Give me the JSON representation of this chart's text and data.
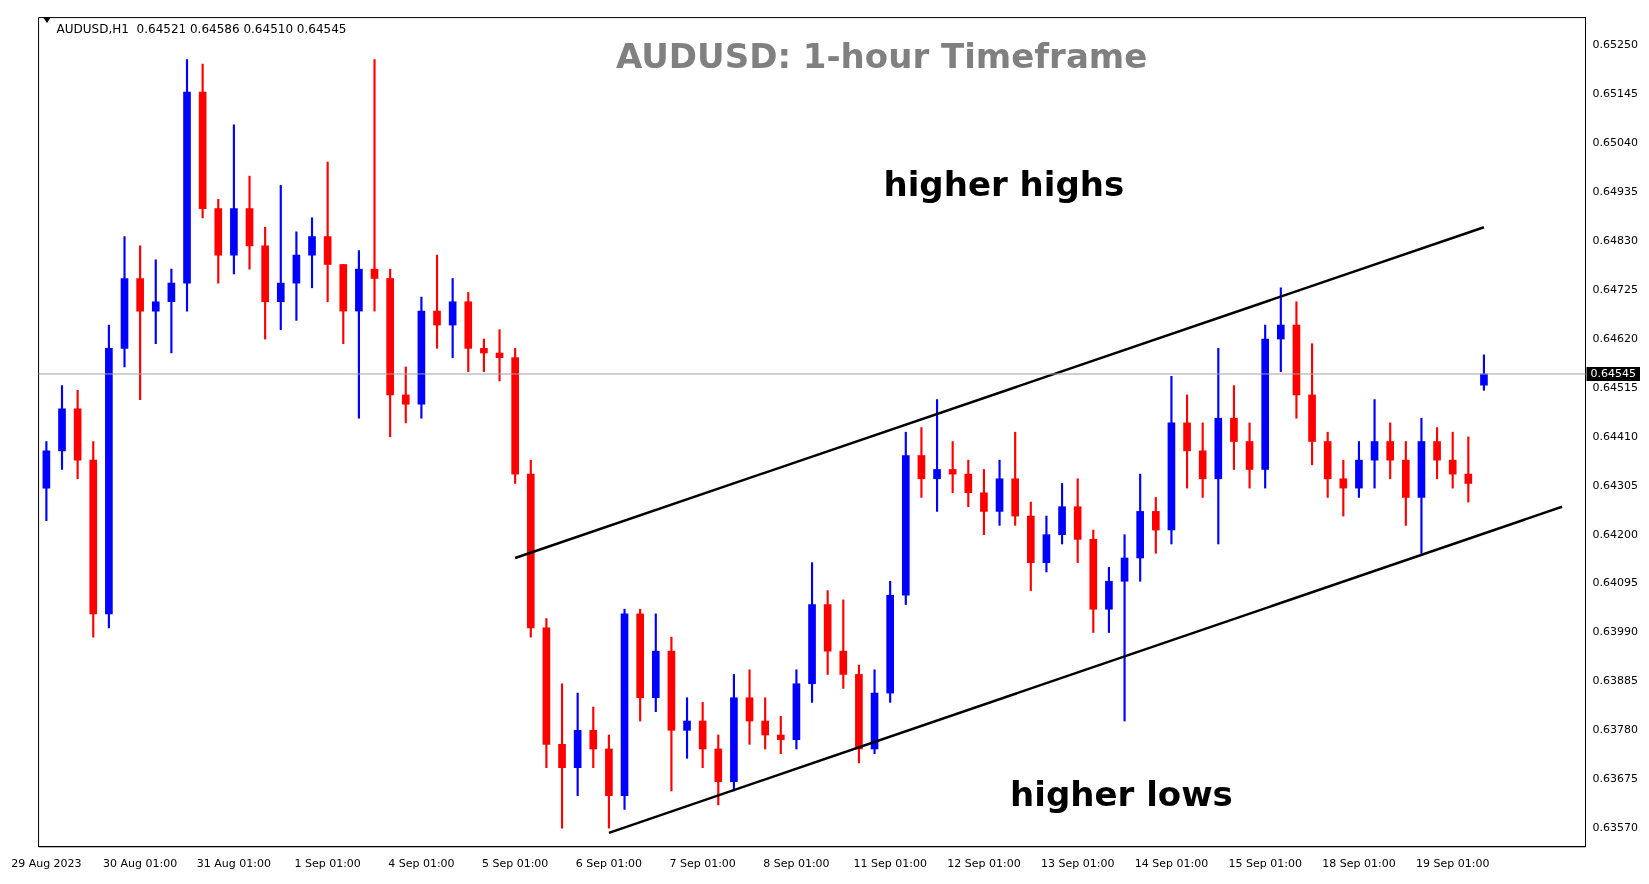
{
  "chart_data": {
    "type": "candlestick",
    "title": "AUDUSD: 1-hour Timeframe",
    "annotations": [
      "AUDUSD,H1  0.64521 0.64586 0.64510 0.64545",
      "higher highs",
      "higher lows"
    ],
    "categories": [
      "29 Aug 2023",
      null,
      null,
      null,
      null,
      null,
      "30 Aug 01:00",
      null,
      null,
      null,
      null,
      null,
      "31 Aug 01:00",
      null,
      null,
      null,
      null,
      null,
      "1 Sep 01:00",
      null,
      null,
      null,
      null,
      null,
      "4 Sep 01:00",
      null,
      null,
      null,
      null,
      null,
      "5 Sep 01:00",
      null,
      null,
      null,
      null,
      null,
      "6 Sep 01:00",
      null,
      null,
      null,
      null,
      null,
      "7 Sep 01:00",
      null,
      null,
      null,
      null,
      null,
      "8 Sep 01:00",
      null,
      null,
      null,
      null,
      null,
      "11 Sep 01:00",
      null,
      null,
      null,
      null,
      null,
      "12 Sep 01:00",
      null,
      null,
      null,
      null,
      null,
      "13 Sep 01:00",
      null,
      null,
      null,
      null,
      null,
      "14 Sep 01:00",
      null,
      null,
      null,
      null,
      null,
      "15 Sep 01:00",
      null,
      null,
      null,
      null,
      null,
      "18 Sep 01:00",
      null,
      null,
      null,
      null,
      null,
      "19 Sep 01:00",
      null,
      null,
      null,
      null,
      null,
      null,
      null,
      null
    ],
    "ohlc": [
      [
        0.643,
        0.644,
        0.6423,
        0.6438
      ],
      [
        0.6438,
        0.6452,
        0.6434,
        0.6447
      ],
      [
        0.6447,
        0.6451,
        0.6432,
        0.6436
      ],
      [
        0.6436,
        0.644,
        0.6398,
        0.6403
      ],
      [
        0.6403,
        0.6465,
        0.64,
        0.646
      ],
      [
        0.646,
        0.6484,
        0.6456,
        0.6475
      ],
      [
        0.6475,
        0.6482,
        0.6449,
        0.6468
      ],
      [
        0.6468,
        0.6479,
        0.6461,
        0.647
      ],
      [
        0.647,
        0.6477,
        0.6459,
        0.6474
      ],
      [
        0.6474,
        0.6522,
        0.6468,
        0.6515
      ],
      [
        0.6515,
        0.6521,
        0.6488,
        0.649
      ],
      [
        0.649,
        0.6492,
        0.6474,
        0.648
      ],
      [
        0.648,
        0.6508,
        0.6476,
        0.649
      ],
      [
        0.649,
        0.6497,
        0.6477,
        0.6482
      ],
      [
        0.6482,
        0.6486,
        0.6462,
        0.647
      ],
      [
        0.647,
        0.6495,
        0.6464,
        0.6474
      ],
      [
        0.6474,
        0.6485,
        0.6466,
        0.648
      ],
      [
        0.648,
        0.6488,
        0.6473,
        0.6484
      ],
      [
        0.6484,
        0.65,
        0.647,
        0.6478
      ],
      [
        0.6478,
        0.6478,
        0.6461,
        0.6468
      ],
      [
        0.6468,
        0.6481,
        0.6445,
        0.6477
      ],
      [
        0.6477,
        0.6522,
        0.6468,
        0.6475
      ],
      [
        0.6475,
        0.6477,
        0.6441,
        0.645
      ],
      [
        0.645,
        0.6456,
        0.6444,
        0.6448
      ],
      [
        0.6448,
        0.6471,
        0.6445,
        0.6468
      ],
      [
        0.6468,
        0.648,
        0.646,
        0.6465
      ],
      [
        0.6465,
        0.6475,
        0.6458,
        0.647
      ],
      [
        0.647,
        0.6472,
        0.6455,
        0.646
      ],
      [
        0.646,
        0.6462,
        0.6455,
        0.6459
      ],
      [
        0.6459,
        0.6464,
        0.6453,
        0.6458
      ],
      [
        0.6458,
        0.646,
        0.6431,
        0.6433
      ],
      [
        0.6433,
        0.6436,
        0.6398,
        0.64
      ],
      [
        0.64,
        0.6402,
        0.637,
        0.6375
      ],
      [
        0.6375,
        0.6388,
        0.6357,
        0.637
      ],
      [
        0.637,
        0.6386,
        0.6364,
        0.6378
      ],
      [
        0.6378,
        0.6383,
        0.637,
        0.6374
      ],
      [
        0.6374,
        0.6377,
        0.6357,
        0.6364
      ],
      [
        0.6364,
        0.6404,
        0.6361,
        0.6403
      ],
      [
        0.6403,
        0.6404,
        0.638,
        0.6385
      ],
      [
        0.6385,
        0.6403,
        0.6382,
        0.6395
      ],
      [
        0.6395,
        0.6398,
        0.6365,
        0.6378
      ],
      [
        0.6378,
        0.6385,
        0.6372,
        0.638
      ],
      [
        0.638,
        0.6384,
        0.637,
        0.6374
      ],
      [
        0.6374,
        0.6377,
        0.6362,
        0.6367
      ],
      [
        0.6367,
        0.639,
        0.6365,
        0.6385
      ],
      [
        0.6385,
        0.6391,
        0.6375,
        0.638
      ],
      [
        0.638,
        0.6385,
        0.6374,
        0.6377
      ],
      [
        0.6377,
        0.6381,
        0.6373,
        0.6376
      ],
      [
        0.6376,
        0.6391,
        0.6374,
        0.6388
      ],
      [
        0.6388,
        0.6414,
        0.6384,
        0.6405
      ],
      [
        0.6405,
        0.6408,
        0.639,
        0.6395
      ],
      [
        0.6395,
        0.6406,
        0.6387,
        0.639
      ],
      [
        0.639,
        0.6392,
        0.6371,
        0.6374
      ],
      [
        0.6374,
        0.6391,
        0.6373,
        0.6386
      ],
      [
        0.6386,
        0.641,
        0.6384,
        0.6407
      ],
      [
        0.6407,
        0.6442,
        0.6405,
        0.6437
      ],
      [
        0.6437,
        0.6443,
        0.6428,
        0.6432
      ],
      [
        0.6432,
        0.6449,
        0.6425,
        0.6434
      ],
      [
        0.6434,
        0.644,
        0.6429,
        0.6433
      ],
      [
        0.6433,
        0.6436,
        0.6426,
        0.6429
      ],
      [
        0.6429,
        0.6434,
        0.642,
        0.6425
      ],
      [
        0.6425,
        0.6436,
        0.6422,
        0.6432
      ],
      [
        0.6432,
        0.6442,
        0.6422,
        0.6424
      ],
      [
        0.6424,
        0.6427,
        0.6408,
        0.6414
      ],
      [
        0.6414,
        0.6424,
        0.6412,
        0.642
      ],
      [
        0.642,
        0.6431,
        0.6418,
        0.6426
      ],
      [
        0.6426,
        0.6432,
        0.6414,
        0.6419
      ],
      [
        0.6419,
        0.6421,
        0.6399,
        0.6404
      ],
      [
        0.6404,
        0.6413,
        0.6399,
        0.641
      ],
      [
        0.641,
        0.642,
        0.638,
        0.6415
      ],
      [
        0.6415,
        0.6433,
        0.641,
        0.6425
      ],
      [
        0.6425,
        0.6428,
        0.6416,
        0.6421
      ],
      [
        0.6421,
        0.6454,
        0.6418,
        0.6444
      ],
      [
        0.6444,
        0.645,
        0.643,
        0.6438
      ],
      [
        0.6438,
        0.6444,
        0.6428,
        0.6432
      ],
      [
        0.6432,
        0.646,
        0.6418,
        0.6445
      ],
      [
        0.6445,
        0.6452,
        0.6434,
        0.644
      ],
      [
        0.644,
        0.6444,
        0.643,
        0.6434
      ],
      [
        0.6434,
        0.6465,
        0.643,
        0.6462
      ],
      [
        0.6462,
        0.6473,
        0.6455,
        0.6465
      ],
      [
        0.6465,
        0.647,
        0.6445,
        0.645
      ],
      [
        0.645,
        0.6461,
        0.6435,
        0.644
      ],
      [
        0.644,
        0.6442,
        0.6428,
        0.6432
      ],
      [
        0.6432,
        0.6436,
        0.6424,
        0.643
      ],
      [
        0.643,
        0.644,
        0.6428,
        0.6436
      ],
      [
        0.6436,
        0.6449,
        0.643,
        0.644
      ],
      [
        0.644,
        0.6444,
        0.6432,
        0.6436
      ],
      [
        0.6436,
        0.644,
        0.6422,
        0.6428
      ],
      [
        0.6428,
        0.6445,
        0.6416,
        0.644
      ],
      [
        0.644,
        0.6443,
        0.6432,
        0.6436
      ],
      [
        0.6436,
        0.6442,
        0.643,
        0.6433
      ],
      [
        0.6433,
        0.6441,
        0.6427,
        0.6431
      ],
      [
        0.64521,
        0.64586,
        0.6451,
        0.64545
      ],
      null,
      null,
      null,
      null,
      null,
      null
    ],
    "colors": [
      "#0000ff",
      "#0000ff",
      "#ff0000",
      "#ff0000",
      "#0000ff",
      "#0000ff",
      "#ff0000",
      "#0000ff",
      "#0000ff",
      "#0000ff",
      "#ff0000",
      "#ff0000",
      "#0000ff",
      "#ff0000",
      "#ff0000",
      "#0000ff",
      "#0000ff",
      "#0000ff",
      "#ff0000",
      "#ff0000",
      "#0000ff",
      "#ff0000",
      "#ff0000",
      "#ff0000",
      "#0000ff",
      "#ff0000",
      "#0000ff",
      "#ff0000",
      "#ff0000",
      "#ff0000",
      "#ff0000",
      "#ff0000",
      "#ff0000",
      "#ff0000",
      "#0000ff",
      "#ff0000",
      "#ff0000",
      "#0000ff",
      "#ff0000",
      "#0000ff",
      "#ff0000",
      "#0000ff",
      "#ff0000",
      "#ff0000",
      "#0000ff",
      "#ff0000",
      "#ff0000",
      "#ff0000",
      "#0000ff",
      "#0000ff",
      "#ff0000",
      "#ff0000",
      "#ff0000",
      "#0000ff",
      "#0000ff",
      "#0000ff",
      "#ff0000",
      "#0000ff",
      "#ff0000",
      "#ff0000",
      "#ff0000",
      "#0000ff",
      "#ff0000",
      "#ff0000",
      "#0000ff",
      "#0000ff",
      "#ff0000",
      "#ff0000",
      "#0000ff",
      "#0000ff",
      "#0000ff",
      "#ff0000",
      "#0000ff",
      "#ff0000",
      "#ff0000",
      "#0000ff",
      "#ff0000",
      "#ff0000",
      "#0000ff",
      "#0000ff",
      "#ff0000",
      "#ff0000",
      "#ff0000",
      "#ff0000",
      "#0000ff",
      "#0000ff",
      "#ff0000",
      "#ff0000",
      "#0000ff",
      "#ff0000",
      "#ff0000",
      "#ff0000",
      "#0000ff",
      null,
      null,
      null,
      null,
      null,
      null
    ],
    "series": [
      {
        "type": "line",
        "color": "#000000",
        "values": [
          null,
          null,
          null,
          null,
          null,
          null,
          null,
          null,
          null,
          null,
          null,
          null,
          null,
          null,
          null,
          null,
          null,
          null,
          null,
          null,
          null,
          null,
          null,
          null,
          null,
          null,
          null,
          null,
          null,
          null,
          0.6415,
          null,
          null,
          null,
          null,
          null,
          null,
          null,
          null,
          null,
          null,
          null,
          null,
          null,
          null,
          null,
          null,
          null,
          null,
          null,
          null,
          null,
          null,
          null,
          null,
          null,
          null,
          null,
          null,
          null,
          null,
          null,
          null,
          null,
          null,
          null,
          null,
          null,
          null,
          null,
          null,
          null,
          null,
          null,
          null,
          null,
          null,
          null,
          null,
          null,
          null,
          null,
          null,
          null,
          null,
          null,
          null,
          null,
          null,
          null,
          null,
          null,
          0.6486,
          null,
          null,
          null,
          null,
          null,
          null
        ]
      },
      {
        "type": "line",
        "color": "#000000",
        "values": [
          null,
          null,
          null,
          null,
          null,
          null,
          null,
          null,
          null,
          null,
          null,
          null,
          null,
          null,
          null,
          null,
          null,
          null,
          null,
          null,
          null,
          null,
          null,
          null,
          null,
          null,
          null,
          null,
          null,
          null,
          null,
          null,
          null,
          null,
          null,
          null,
          0.6356,
          null,
          null,
          null,
          null,
          null,
          null,
          null,
          null,
          null,
          null,
          null,
          null,
          null,
          null,
          null,
          null,
          null,
          null,
          null,
          null,
          null,
          null,
          null,
          null,
          null,
          null,
          null,
          null,
          null,
          null,
          null,
          null,
          null,
          null,
          null,
          null,
          null,
          null,
          null,
          null,
          null,
          null,
          null,
          null,
          null,
          null,
          null,
          null,
          null,
          null,
          null,
          null,
          null,
          null,
          null,
          null,
          null,
          null,
          null,
          null,
          0.6426,
          null
        ]
      }
    ],
    "ylim": [
      0.6353,
      0.6531
    ],
    "yticks": [
      {
        "value": 0.6357,
        "label": "0.63570"
      },
      {
        "value": 0.63675,
        "label": "0.63675"
      },
      {
        "value": 0.6378,
        "label": "0.63780"
      },
      {
        "value": 0.63885,
        "label": "0.63885"
      },
      {
        "value": 0.6399,
        "label": "0.63990"
      },
      {
        "value": 0.64095,
        "label": "0.64095"
      },
      {
        "value": 0.642,
        "label": "0.64200"
      },
      {
        "value": 0.64305,
        "label": "0.64305"
      },
      {
        "value": 0.6441,
        "label": "0.64410"
      },
      {
        "value": 0.64515,
        "label": "0.64515"
      },
      {
        "value": 0.6462,
        "label": "0.64620"
      },
      {
        "value": 0.64725,
        "label": "0.64725"
      },
      {
        "value": 0.6483,
        "label": "0.64830"
      },
      {
        "value": 0.64935,
        "label": "0.64935"
      },
      {
        "value": 0.6504,
        "label": "0.65040"
      },
      {
        "value": 0.65145,
        "label": "0.65145"
      },
      {
        "value": 0.6525,
        "label": "0.65250"
      }
    ],
    "ref_lines": [
      {
        "axis": "y",
        "value": 0.64545,
        "label": "0.64545",
        "color": "#a0a0a0"
      }
    ]
  }
}
